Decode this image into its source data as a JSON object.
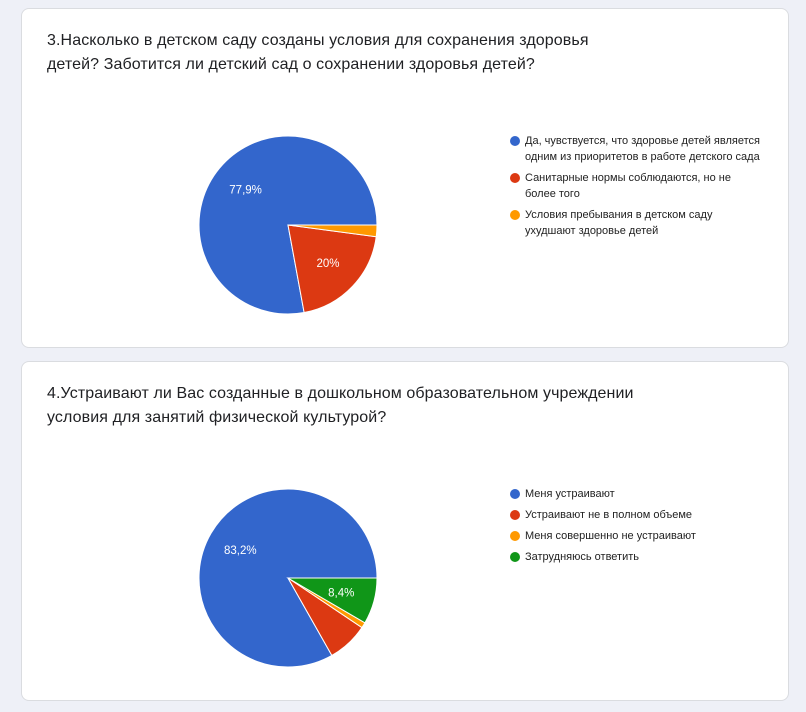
{
  "chart_data": [
    {
      "type": "pie",
      "title": "3.Насколько в детском саду созданы условия для сохранения здоровья детей? Заботится ли детский сад о сохранении здоровья детей?",
      "series": [
        {
          "name": "Да, чувствуется, что здоровье детей является одним из приоритетов в работе детского сада",
          "value": 77.9,
          "label": "77,9%",
          "color": "#3366cc"
        },
        {
          "name": "Санитарные нормы соблюдаются, но не более того",
          "value": 20.0,
          "label": "20%",
          "color": "#dc3912"
        },
        {
          "name": "Условия пребывания в детском саду ухудшают здоровье детей",
          "value": 2.1,
          "label": "",
          "color": "#ff9900"
        }
      ],
      "legend_position": "right"
    },
    {
      "type": "pie",
      "title": "4.Устраивают ли Вас созданные в дошкольном образовательном учреждении условия для занятий физической культурой?",
      "series": [
        {
          "name": "Меня устраивают",
          "value": 83.2,
          "label": "83,2%",
          "color": "#3366cc"
        },
        {
          "name": "Устраивают не в полном объеме",
          "value": 7.4,
          "label": "",
          "color": "#dc3912"
        },
        {
          "name": "Меня совершенно не устраивают",
          "value": 1.0,
          "label": "",
          "color": "#ff9900"
        },
        {
          "name": "Затрудняюсь ответить",
          "value": 8.4,
          "label": "8,4%",
          "color": "#109618"
        }
      ],
      "legend_position": "right"
    }
  ]
}
